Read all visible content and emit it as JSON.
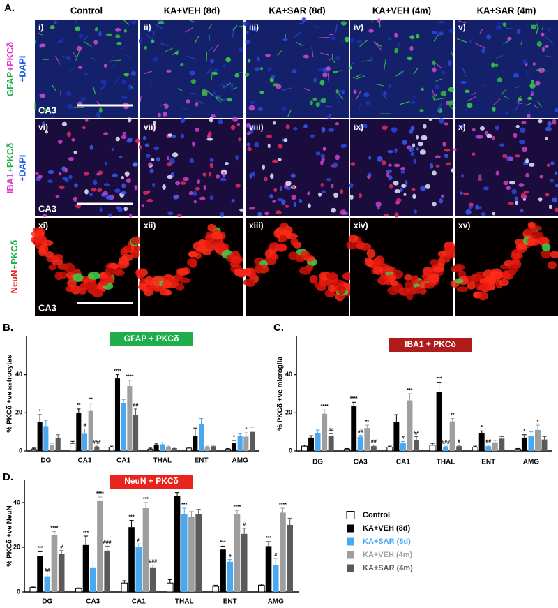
{
  "panel_a": {
    "label": "A.",
    "columns": [
      "Control",
      "KA+VEH (8d)",
      "KA+SAR (8d)",
      "KA+VEH (4m)",
      "KA+SAR (4m)"
    ],
    "rows": [
      [
        "GFAP",
        "+PKCδ",
        "+DAPI"
      ],
      [
        "IBA1",
        "+PKCδ",
        "+DAPI"
      ],
      [
        "NeuN",
        "+PKCδ"
      ]
    ],
    "panels": [
      "i)",
      "ii)",
      "iii)",
      "iv)",
      "v)",
      "vi)",
      "vii)",
      "viii)",
      "ix)",
      "x)",
      "xi)",
      "xii)",
      "xiii)",
      "xiv)",
      "xv)"
    ],
    "region": "CA3"
  },
  "chart_data": [
    {
      "type": "bar",
      "panel_label": "B.",
      "title": "GFAP + PKCδ",
      "title_color": "#1fae4b",
      "ylabel": "% PKCδ +ve astrocytes",
      "categories": [
        "DG",
        "CA3",
        "CA1",
        "THAL",
        "ENT",
        "AMG"
      ],
      "ylim": [
        0,
        60
      ],
      "yticks": [
        0,
        20,
        40
      ],
      "series": [
        {
          "color": "#ffffff",
          "values": [
            1,
            4,
            2,
            1,
            1.5,
            1
          ],
          "errors": [
            0.5,
            1,
            0.5,
            0.5,
            0.5,
            0.3
          ],
          "sig": [
            null,
            null,
            null,
            null,
            null,
            null
          ]
        },
        {
          "color": "#000000",
          "values": [
            15,
            20,
            38,
            3,
            8,
            4
          ],
          "errors": [
            4,
            2,
            2,
            0.7,
            4,
            1.5
          ],
          "sig": [
            "*",
            "**",
            "****",
            null,
            null,
            "*"
          ]
        },
        {
          "color": "#4aa8f0",
          "values": [
            13,
            9,
            25,
            3.5,
            14,
            8
          ],
          "errors": [
            3,
            2.5,
            2,
            0.8,
            3,
            1
          ],
          "sig": [
            null,
            "#",
            null,
            null,
            null,
            null
          ]
        },
        {
          "color": "#9e9e9e",
          "values": [
            3,
            21,
            34,
            2,
            2,
            7.5
          ],
          "errors": [
            1,
            4,
            3,
            0.5,
            0.5,
            2
          ],
          "sig": [
            null,
            "**",
            "****",
            null,
            null,
            "*"
          ]
        },
        {
          "color": "#5a5a5a",
          "values": [
            7,
            2,
            19,
            1.5,
            2.5,
            10
          ],
          "errors": [
            1.5,
            0.5,
            3,
            0.5,
            0.5,
            2.5
          ],
          "sig": [
            null,
            "###",
            "##",
            null,
            null,
            null
          ]
        }
      ]
    },
    {
      "type": "bar",
      "panel_label": "C.",
      "title": "IBA1 + PKCδ",
      "title_color": "#b01c1c",
      "ylabel": "% PKCδ +ve microglia",
      "categories": [
        "DG",
        "CA3",
        "CA1",
        "THAL",
        "ENT",
        "AMG"
      ],
      "ylim": [
        0,
        60
      ],
      "yticks": [
        0,
        20,
        40
      ],
      "series": [
        {
          "color": "#ffffff",
          "values": [
            2.5,
            1,
            2,
            3,
            2,
            1
          ],
          "errors": [
            0.5,
            0.3,
            0.5,
            1,
            0.5,
            0.3
          ],
          "sig": [
            null,
            null,
            null,
            null,
            null,
            null
          ]
        },
        {
          "color": "#000000",
          "values": [
            7,
            23.5,
            15,
            31,
            9.5,
            7
          ],
          "errors": [
            1,
            2,
            4,
            5,
            1,
            1.5
          ],
          "sig": [
            null,
            "****",
            null,
            "***",
            "*",
            "*"
          ]
        },
        {
          "color": "#4aa8f0",
          "values": [
            9.5,
            7.5,
            4,
            2,
            2.5,
            8
          ],
          "errors": [
            1.5,
            0.7,
            1,
            0.5,
            0.5,
            2
          ],
          "sig": [
            null,
            "##",
            "#",
            "###",
            "##",
            null
          ]
        },
        {
          "color": "#9e9e9e",
          "values": [
            19.5,
            12,
            26.5,
            15.5,
            4.5,
            11
          ],
          "errors": [
            2,
            1.5,
            3.5,
            1.5,
            1,
            2.5
          ],
          "sig": [
            "****",
            "**",
            "***",
            "**",
            null,
            "*"
          ]
        },
        {
          "color": "#5a5a5a",
          "values": [
            8,
            2.5,
            5.5,
            2.5,
            6.5,
            6
          ],
          "errors": [
            1,
            0.5,
            2,
            0.5,
            1,
            1.5
          ],
          "sig": [
            "##",
            "##",
            "##",
            "#",
            null,
            null
          ]
        }
      ]
    },
    {
      "type": "bar",
      "panel_label": "D.",
      "title": "NeuN + PKCδ",
      "title_color": "#e8241c",
      "ylabel": "% PKCδ +ve NeuN",
      "legend": true,
      "categories": [
        "DG",
        "CA3",
        "CA1",
        "THAL",
        "ENT",
        "AMG"
      ],
      "ylim": [
        0,
        50
      ],
      "yticks": [
        0,
        20,
        40
      ],
      "series": [
        {
          "name": "Control",
          "color": "#ffffff",
          "values": [
            2,
            1.5,
            4,
            4,
            2.5,
            3
          ],
          "errors": [
            0.5,
            0.3,
            1,
            1.5,
            0.5,
            0.5
          ],
          "sig": [
            null,
            null,
            null,
            null,
            null,
            null
          ]
        },
        {
          "name": "KA+VEH (8d)",
          "color": "#000000",
          "values": [
            16,
            21,
            29,
            43,
            19,
            20.5
          ],
          "errors": [
            2,
            4,
            3,
            1.5,
            1.5,
            2
          ],
          "sig": [
            "***",
            "***",
            "***",
            "****",
            "***",
            "***"
          ]
        },
        {
          "name": "KA+SAR (8d)",
          "color": "#4aa8f0",
          "values": [
            7,
            11,
            20,
            35,
            13.5,
            12
          ],
          "errors": [
            1,
            2,
            1.5,
            2.5,
            1,
            3
          ],
          "sig": [
            "##",
            null,
            "#",
            "***",
            "#",
            "#"
          ]
        },
        {
          "name": "KA+VEH (4m)",
          "color": "#9e9e9e",
          "values": [
            25.5,
            41,
            37.5,
            33.5,
            35,
            35.5
          ],
          "errors": [
            1.5,
            1.5,
            2.5,
            2.5,
            1.5,
            2
          ],
          "sig": [
            "****",
            "****",
            "***",
            null,
            "****",
            "****"
          ]
        },
        {
          "name": "KA+SAR (4m)",
          "color": "#5a5a5a",
          "values": [
            17,
            18.5,
            11,
            35,
            26,
            30
          ],
          "errors": [
            1.5,
            2,
            1,
            2,
            2.5,
            3
          ],
          "sig": [
            "#",
            "###",
            "###",
            null,
            "#",
            null
          ]
        }
      ]
    }
  ]
}
